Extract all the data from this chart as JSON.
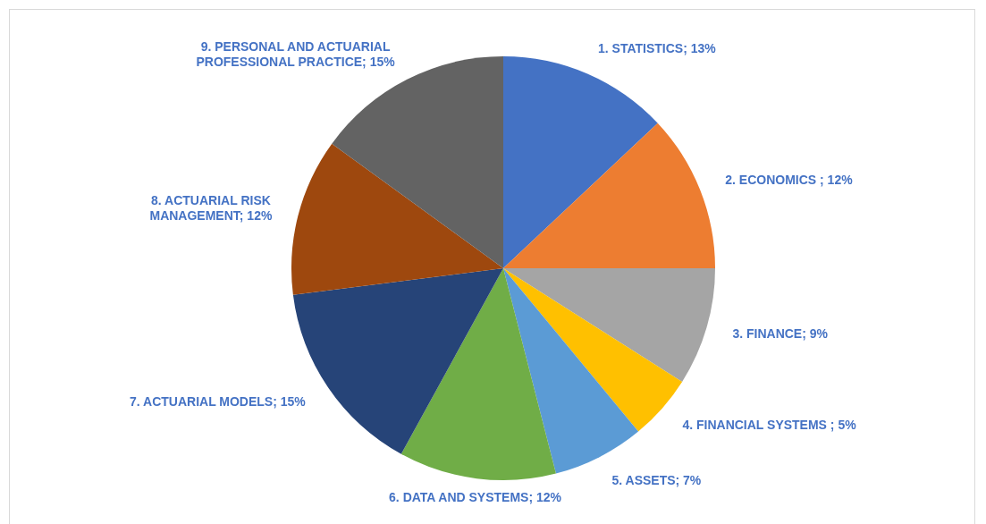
{
  "chart_data": {
    "type": "pie",
    "categories": [
      "1. STATISTICS",
      "2. ECONOMICS ",
      "3. FINANCE",
      "4. FINANCIAL SYSTEMS ",
      "5. ASSETS",
      "6. DATA AND SYSTEMS",
      "7. ACTUARIAL MODELS",
      "8. ACTUARIAL RISK MANAGEMENT",
      "9. PERSONAL AND ACTUARIAL PROFESSIONAL PRACTICE"
    ],
    "values": [
      13,
      12,
      9,
      5,
      7,
      12,
      15,
      12,
      15
    ],
    "colors": [
      "#4472c4",
      "#ed7d31",
      "#a5a5a5",
      "#ffc000",
      "#5b9bd5",
      "#70ad47",
      "#264478",
      "#9e480e",
      "#636363"
    ],
    "value_labels": [
      "13%",
      "12%",
      "9%",
      "5%",
      "7%",
      "12%",
      "15%",
      "12%",
      "15%"
    ]
  }
}
